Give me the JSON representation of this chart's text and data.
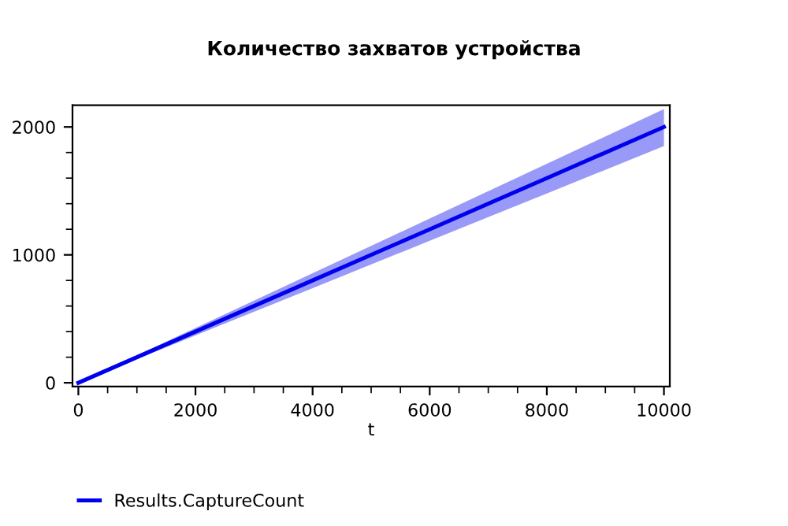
{
  "chart_data": {
    "type": "line",
    "title": "Количество захватов устройства",
    "xlabel": "t",
    "x": [
      0,
      2000,
      4000,
      6000,
      8000,
      10000
    ],
    "series": [
      {
        "name": "Results.CaptureCount",
        "color": "#0000ee",
        "values": [
          0,
          400,
          800,
          1200,
          1600,
          2000
        ],
        "lower": [
          0,
          370,
          740,
          1110,
          1480,
          1850
        ],
        "upper": [
          0,
          428,
          856,
          1284,
          1712,
          2140
        ]
      }
    ],
    "xlim": [
      -100,
      10100
    ],
    "xticks": [
      0,
      2000,
      4000,
      6000,
      8000,
      10000
    ],
    "ylim": [
      -30,
      2170
    ],
    "yticks": [
      0,
      1000,
      2000
    ],
    "grid": false,
    "legend": "bottom left"
  }
}
